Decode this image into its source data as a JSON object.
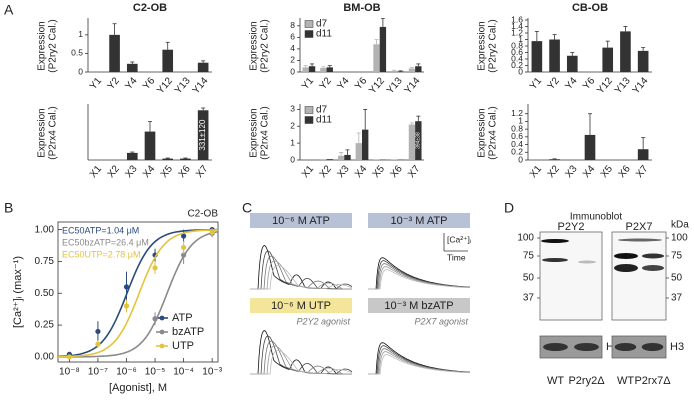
{
  "panel_labels": [
    "A",
    "B",
    "C",
    "D"
  ],
  "chart_data": [
    {
      "type": "bar",
      "title": "C2-OB",
      "ylabel": [
        "Expression",
        "(P2ry2 Cal.)"
      ],
      "categories": [
        "Y1",
        "Y2",
        "Y4",
        "Y6",
        "Y12",
        "Y13",
        "Y14"
      ],
      "values": [
        0,
        1.0,
        0.22,
        0,
        0.6,
        0,
        0.25
      ],
      "errors": [
        0,
        0.3,
        0.05,
        0,
        0.2,
        0,
        0.05
      ],
      "color": "#333333",
      "ylim": [
        0,
        1.4
      ],
      "yticks": [
        0,
        0.5,
        1
      ]
    },
    {
      "type": "bar",
      "title": "BM-OB",
      "ylabel": [
        "Expression",
        "(P2ry2 Cal.)"
      ],
      "categories": [
        "Y1",
        "Y2",
        "Y4",
        "Y6",
        "Y12",
        "Y13",
        "Y14"
      ],
      "series": [
        {
          "name": "d7",
          "color": "#b3b3b3",
          "values": [
            0.8,
            0.7,
            0,
            0,
            4.8,
            0.2,
            0.6
          ],
          "errors": [
            0.3,
            0.2,
            0,
            0,
            0.8,
            0.1,
            0.2
          ]
        },
        {
          "name": "d11",
          "color": "#333333",
          "values": [
            1.0,
            0.8,
            0,
            0,
            7.8,
            0.1,
            1.0
          ],
          "errors": [
            0.4,
            0.3,
            0,
            0,
            1.5,
            0.1,
            0.4
          ]
        }
      ],
      "ylim": [
        0,
        9
      ],
      "yticks": [
        0,
        2,
        4,
        6,
        8
      ]
    },
    {
      "type": "bar",
      "title": "CB-OB",
      "ylabel": [
        "Expression",
        "(P2ry2 Cal.)"
      ],
      "categories": [
        "Y1",
        "Y2",
        "Y4",
        "Y6",
        "Y12",
        "Y13",
        "Y14"
      ],
      "values": [
        0.95,
        1.0,
        0.5,
        0,
        0.75,
        1.25,
        0.65
      ],
      "errors": [
        0.3,
        0.15,
        0.1,
        0,
        0.2,
        0.15,
        0.1
      ],
      "color": "#333333",
      "ylim": [
        0,
        1.6
      ],
      "yticks": [
        0,
        0.2,
        0.4,
        0.6,
        0.8,
        1,
        1.2,
        1.4,
        1.6
      ]
    },
    {
      "type": "bar",
      "ylabel": [
        "Expression",
        "(P2rx4 Cal.)"
      ],
      "categories": [
        "X1",
        "X2",
        "X3",
        "X4",
        "X5",
        "X6",
        "X7"
      ],
      "values": [
        0,
        0,
        0.25,
        1.0,
        0.05,
        0.05,
        1.75
      ],
      "errors": [
        0,
        0,
        0.03,
        0.35,
        0.02,
        0.02,
        0.08
      ],
      "color": "#333333",
      "ylim": [
        0,
        1.9
      ],
      "annotation": "331±120"
    },
    {
      "type": "bar",
      "ylabel": [
        "Expression",
        "(P2rx4 Cal.)"
      ],
      "categories": [
        "X1",
        "X2",
        "X3",
        "X4",
        "X5",
        "X6",
        "X7"
      ],
      "series": [
        {
          "name": "d7",
          "color": "#b3b3b3",
          "values": [
            0,
            0.05,
            0.25,
            1.0,
            0.02,
            0.02,
            2.1
          ],
          "errors": [
            0,
            0,
            0.2,
            0.6,
            0,
            0,
            0.1
          ]
        },
        {
          "name": "d11",
          "color": "#333333",
          "values": [
            0,
            0.05,
            0.3,
            1.8,
            0.02,
            0.02,
            2.3
          ],
          "errors": [
            0,
            0,
            0.3,
            1.2,
            0,
            0,
            0.3
          ]
        }
      ],
      "ylim": [
        0,
        3.2
      ],
      "yticks": [
        0,
        1,
        2,
        3
      ],
      "annotation": "394±38"
    },
    {
      "type": "bar",
      "ylabel": [
        "Expression",
        "(P2rx4 Cal.)"
      ],
      "categories": [
        "X1",
        "X2",
        "X3",
        "X4",
        "X5",
        "X6",
        "X7"
      ],
      "values": [
        0,
        0.02,
        0,
        0.65,
        0,
        0,
        0.28
      ],
      "errors": [
        0,
        0.01,
        0,
        0.55,
        0,
        0,
        0.3
      ],
      "color": "#333333",
      "ylim": [
        0,
        1.4
      ],
      "yticks": [
        0,
        0.2,
        0.4,
        0.6,
        0.8,
        1,
        1.2
      ]
    },
    {
      "type": "scatter",
      "title": "C2-OB",
      "xlabel": "[Agonist], M",
      "ylabel": "[Ca²⁺]ᵢ (max⁻¹)",
      "xscale": "log",
      "x": [
        1e-08,
        1e-07,
        1e-06,
        1e-05,
        0.0001,
        0.001
      ],
      "series": [
        {
          "name": "ATP",
          "color": "#2a4b7c",
          "values": [
            0.02,
            0.2,
            0.55,
            0.8,
            0.95,
            1.0
          ],
          "errors": [
            0.02,
            0.08,
            0.12,
            0.05,
            0.05,
            0.02
          ],
          "ec50": 1.04e-06,
          "ec50_label": "EC50ATP=1.04 μM"
        },
        {
          "name": "bzATP",
          "color": "#8a8a8a",
          "values": [
            null,
            null,
            null,
            0.3,
            0.8,
            0.97
          ],
          "errors": [
            null,
            null,
            null,
            0.05,
            0.07,
            0.03
          ],
          "ec50": 2.64e-05,
          "ec50_label": "EC50bzATP=26.4 μM"
        },
        {
          "name": "UTP",
          "color": "#e3c43a",
          "values": [
            0.0,
            0.1,
            0.4,
            0.7,
            0.86,
            0.98
          ],
          "errors": [
            0.01,
            0.03,
            0.05,
            0.05,
            0.05,
            0.03
          ],
          "ec50": 2.78e-06,
          "ec50_label": "EC50UTP=2.78 μM"
        }
      ],
      "xlim": [
        4e-09,
        0.0016
      ],
      "ylim": [
        -0.04,
        1.06
      ],
      "xticks": [
        {
          "value": 1e-08,
          "label": "10⁻⁸"
        },
        {
          "value": 1e-07,
          "label": "10⁻⁷"
        },
        {
          "value": 1e-06,
          "label": "10⁻⁶"
        },
        {
          "value": 1e-05,
          "label": "10⁻⁵"
        },
        {
          "value": 0.0001,
          "label": "10⁻⁴"
        },
        {
          "value": 0.001,
          "label": "10⁻³"
        }
      ],
      "yticks": [
        {
          "value": 0,
          "label": "0.00"
        },
        {
          "value": 0.25,
          "label": "0.25"
        },
        {
          "value": 0.5,
          "label": "0.50"
        },
        {
          "value": 0.75,
          "label": "0.75"
        },
        {
          "value": 1,
          "label": "1.00"
        }
      ]
    }
  ],
  "traces": {
    "panels": [
      {
        "title": "10⁻⁶ M ATP",
        "color": "#b8c2d6"
      },
      {
        "title": "10⁻³ M ATP",
        "color": "#b8c2d6"
      },
      {
        "title": "10⁻⁶ M UTP",
        "color": "#f3e59a",
        "subtitle": "P2Y2 agonist"
      },
      {
        "title": "10⁻³ M bzATP",
        "color": "#c8c8c8",
        "subtitle": "P2X7 agonist"
      }
    ],
    "scale_y": "[Ca²⁺]ᵢ",
    "scale_x": "Time"
  },
  "blot": {
    "title": "Immunoblot",
    "unit": "kDa",
    "loading": "H3",
    "blots": [
      {
        "name": "P2Y2",
        "markers": [
          "100",
          "75",
          "50",
          "37"
        ],
        "lanes": [
          "WT",
          "P2ry2Δ"
        ]
      },
      {
        "name": "P2X7",
        "markers": [
          "100",
          "75",
          "50",
          "37"
        ],
        "lanes": [
          "WT",
          "P2rx7Δ"
        ]
      }
    ]
  }
}
